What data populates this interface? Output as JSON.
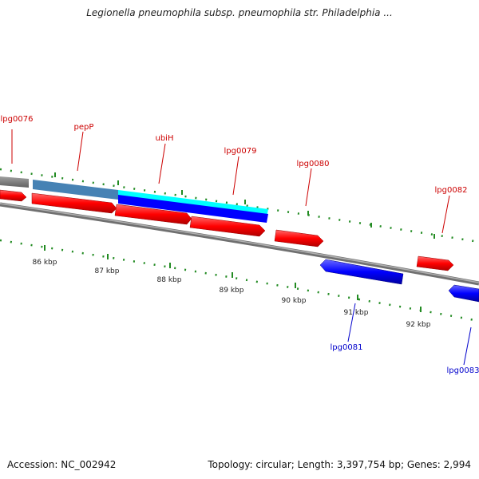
{
  "title": "Legionella pneumophila subsp. pneumophila str. Philadelphia ...",
  "footer": {
    "accession": "Accession: NC_002942",
    "summary": "Topology: circular; Length: 3,397,754 bp; Genes: 2,994"
  },
  "colors": {
    "forward": "#ff0000",
    "reverse": "#0000ff",
    "steel": "#4682b4",
    "cyan": "#00ffff",
    "gray": "#808080",
    "tick": "#006400"
  },
  "ruler": [
    "86 kbp",
    "87 kbp",
    "88 kbp",
    "89 kbp",
    "90 kbp",
    "91 kbp",
    "92 kbp"
  ],
  "genes_top": [
    "lpg0076",
    "pepP",
    "ubiH",
    "lpg0079",
    "lpg0080",
    "lpg0082"
  ],
  "genes_bottom": [
    "lpg0081",
    "lpg0083"
  ]
}
